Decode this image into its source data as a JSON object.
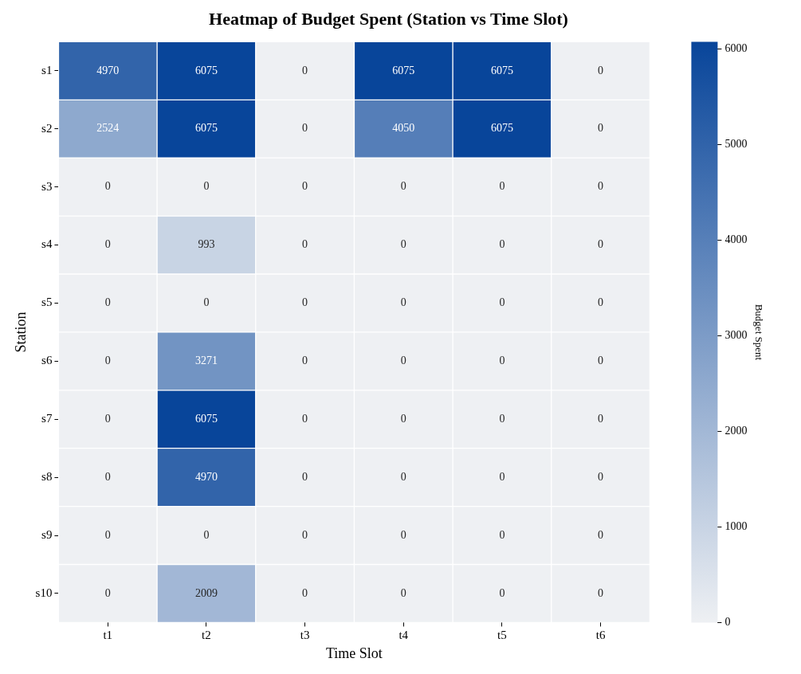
{
  "chart_data": {
    "type": "heatmap",
    "title": "Heatmap of Budget Spent (Station vs Time Slot)",
    "xlabel": "Time Slot",
    "ylabel": "Station",
    "clabel": "Budget Spent",
    "categories": [
      "t1",
      "t2",
      "t3",
      "t4",
      "t5",
      "t6"
    ],
    "y_categories": [
      "s1",
      "s2",
      "s3",
      "s4",
      "s5",
      "s6",
      "s7",
      "s8",
      "s9",
      "s10"
    ],
    "cells": [
      [
        4970,
        6075,
        0,
        6075,
        6075,
        0
      ],
      [
        2524,
        6075,
        0,
        4050,
        6075,
        0
      ],
      [
        0,
        0,
        0,
        0,
        0,
        0
      ],
      [
        0,
        993,
        0,
        0,
        0,
        0
      ],
      [
        0,
        0,
        0,
        0,
        0,
        0
      ],
      [
        0,
        3271,
        0,
        0,
        0,
        0
      ],
      [
        0,
        6075,
        0,
        0,
        0,
        0
      ],
      [
        0,
        4970,
        0,
        0,
        0,
        0
      ],
      [
        0,
        0,
        0,
        0,
        0,
        0
      ],
      [
        0,
        2009,
        0,
        0,
        0,
        0
      ]
    ],
    "clim": [
      0,
      6075
    ],
    "cticks": [
      0,
      1000,
      2000,
      3000,
      4000,
      5000,
      6000
    ],
    "data_labels": true
  }
}
